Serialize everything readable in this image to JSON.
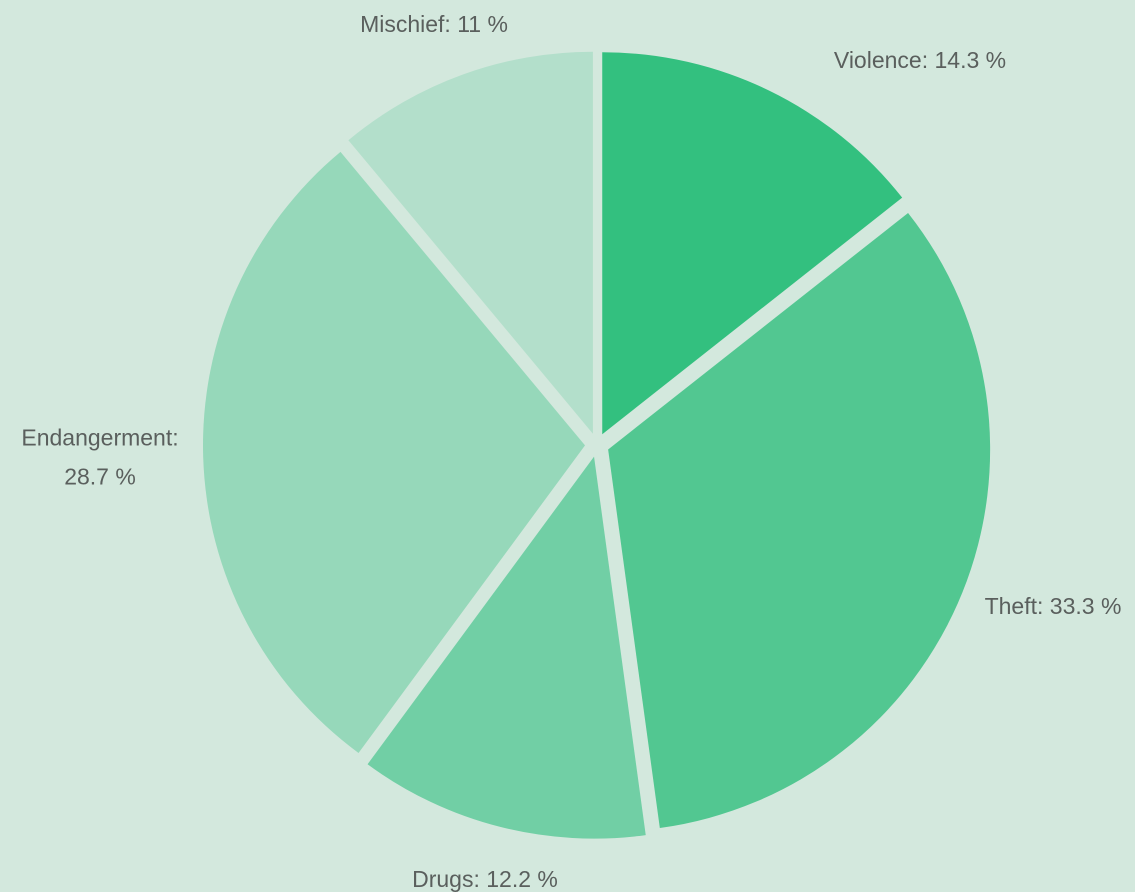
{
  "chart_data": {
    "type": "pie",
    "exploded": true,
    "background": "#d3e8dd",
    "label_color": "#5a5f5d",
    "slices": [
      {
        "label": "Violence",
        "value": 14.3,
        "display": "Violence: 14.3 %",
        "color": "#33c07f"
      },
      {
        "label": "Theft",
        "value": 33.3,
        "display": "Theft: 33.3 %",
        "color": "#52c791"
      },
      {
        "label": "Drugs",
        "value": 12.2,
        "display": "Drugs: 12.2 %",
        "color": "#71cfa5"
      },
      {
        "label": "Endangerment",
        "value": 28.7,
        "display_lines": [
          "Endangerment:",
          "28.7 %"
        ],
        "color": "#96d8ba"
      },
      {
        "label": "Mischief",
        "value": 11,
        "display": "Mischief: 11 %",
        "color": "#b3dfcb"
      }
    ]
  }
}
